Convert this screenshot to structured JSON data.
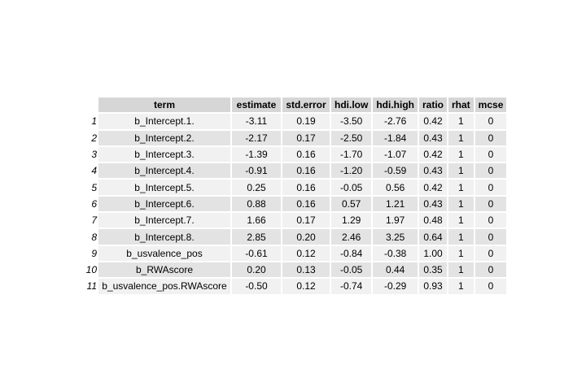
{
  "chart_data": {
    "type": "table",
    "columns": [
      "term",
      "estimate",
      "std.error",
      "hdi.low",
      "hdi.high",
      "ratio",
      "rhat",
      "mcse"
    ],
    "rows": [
      {
        "rowname": "1",
        "cells": [
          "b_Intercept.1.",
          "-3.11",
          "0.19",
          "-3.50",
          "-2.76",
          "0.42",
          "1",
          "0"
        ]
      },
      {
        "rowname": "2",
        "cells": [
          "b_Intercept.2.",
          "-2.17",
          "0.17",
          "-2.50",
          "-1.84",
          "0.43",
          "1",
          "0"
        ]
      },
      {
        "rowname": "3",
        "cells": [
          "b_Intercept.3.",
          "-1.39",
          "0.16",
          "-1.70",
          "-1.07",
          "0.42",
          "1",
          "0"
        ]
      },
      {
        "rowname": "4",
        "cells": [
          "b_Intercept.4.",
          "-0.91",
          "0.16",
          "-1.20",
          "-0.59",
          "0.43",
          "1",
          "0"
        ]
      },
      {
        "rowname": "5",
        "cells": [
          "b_Intercept.5.",
          "0.25",
          "0.16",
          "-0.05",
          "0.56",
          "0.42",
          "1",
          "0"
        ]
      },
      {
        "rowname": "6",
        "cells": [
          "b_Intercept.6.",
          "0.88",
          "0.16",
          "0.57",
          "1.21",
          "0.43",
          "1",
          "0"
        ]
      },
      {
        "rowname": "7",
        "cells": [
          "b_Intercept.7.",
          "1.66",
          "0.17",
          "1.29",
          "1.97",
          "0.48",
          "1",
          "0"
        ]
      },
      {
        "rowname": "8",
        "cells": [
          "b_Intercept.8.",
          "2.85",
          "0.20",
          "2.46",
          "3.25",
          "0.64",
          "1",
          "0"
        ]
      },
      {
        "rowname": "9",
        "cells": [
          "b_usvalence_pos",
          "-0.61",
          "0.12",
          "-0.84",
          "-0.38",
          "1.00",
          "1",
          "0"
        ]
      },
      {
        "rowname": "10",
        "cells": [
          "b_RWAscore",
          "0.20",
          "0.13",
          "-0.05",
          "0.44",
          "0.35",
          "1",
          "0"
        ]
      },
      {
        "rowname": "11",
        "cells": [
          "b_usvalence_pos.RWAscore",
          "-0.50",
          "0.12",
          "-0.74",
          "-0.29",
          "0.93",
          "1",
          "0"
        ]
      }
    ],
    "colors": {
      "header_bg": "#d6d6d6",
      "row_odd_bg": "#f1f1f1",
      "row_even_bg": "#e3e3e3"
    }
  }
}
